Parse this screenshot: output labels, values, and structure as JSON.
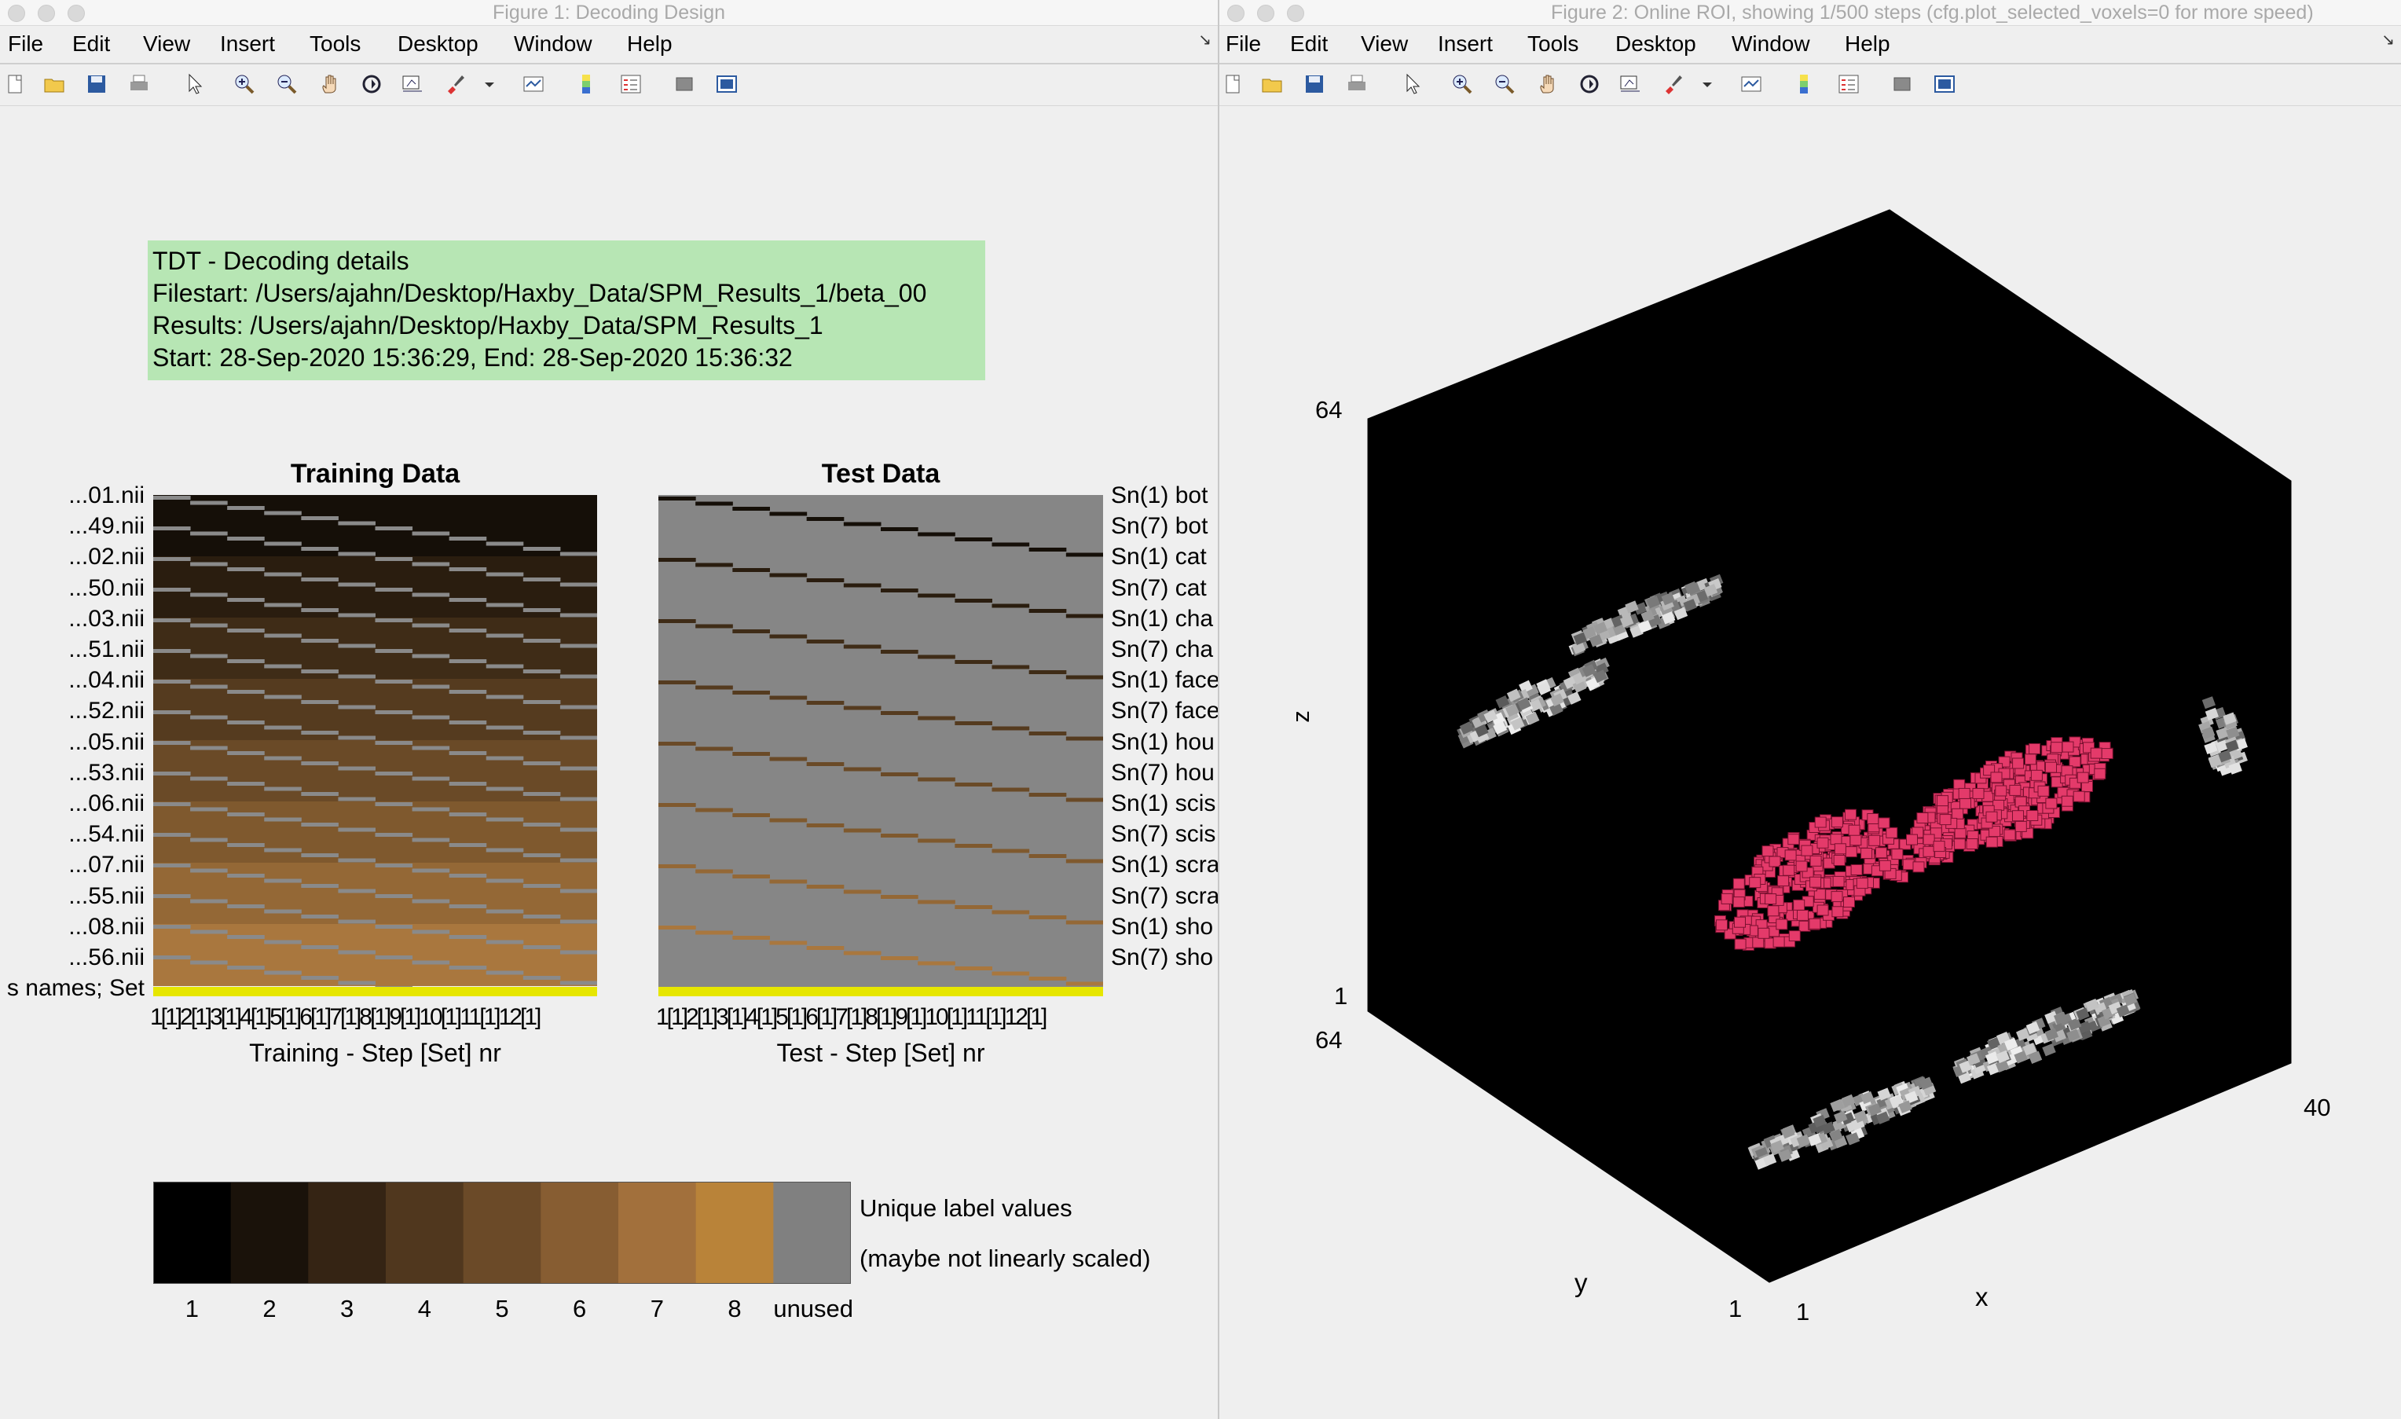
{
  "windows": {
    "fig1": {
      "title": "Figure 1: Decoding Design"
    },
    "fig2": {
      "title": "Figure 2: Online ROI, showing 1/500 steps (cfg.plot_selected_voxels=0 for more speed)"
    }
  },
  "menu": [
    "File",
    "Edit",
    "View",
    "Insert",
    "Tools",
    "Desktop",
    "Window",
    "Help"
  ],
  "toolbar_icons": [
    "new-figure-icon",
    "open-file-icon",
    "save-icon",
    "print-icon",
    "pointer-icon",
    "zoom-in-icon",
    "zoom-out-icon",
    "pan-hand-icon",
    "rotate-3d-icon",
    "data-cursor-icon",
    "brush-icon",
    "dropdown-arrow-icon",
    "link-plot-icon",
    "colorbar-icon",
    "legend-icon",
    "hide-plot-tools-icon",
    "show-plot-tools-icon"
  ],
  "info_box": {
    "line1": "TDT - Decoding details",
    "line2": "Filestart: /Users/ajahn/Desktop/Haxby_Data/SPM_Results_1/beta_00",
    "line3": "Results: /Users/ajahn/Desktop/Haxby_Data/SPM_Results_1",
    "line4": "Start: 28-Sep-2020 15:36:29, End: 28-Sep-2020 15:36:32"
  },
  "training": {
    "title": "Training Data",
    "xlabel": "Training - Step [Set] nr",
    "ticks": "1[1]2[1]3[1]4[1]5[1]6[1]7[1]8[1]9[1]10[1]11[1]12[1]"
  },
  "test": {
    "title": "Test Data",
    "xlabel": "Test - Step [Set] nr",
    "ticks": "1[1]2[1]3[1]4[1]5[1]6[1]7[1]8[1]9[1]10[1]11[1]12[1]"
  },
  "row_labels_left": [
    "...01.nii",
    "...49.nii",
    "...02.nii",
    "...50.nii",
    "...03.nii",
    "...51.nii",
    "...04.nii",
    "...52.nii",
    "...05.nii",
    "...53.nii",
    "...06.nii",
    "...54.nii",
    "...07.nii",
    "...55.nii",
    "...08.nii",
    "...56.nii",
    "s names; Set"
  ],
  "row_labels_right": [
    "Sn(1) bot",
    "Sn(7) bot",
    "Sn(1) cat",
    "Sn(7) cat",
    "Sn(1) cha",
    "Sn(7) cha",
    "Sn(1) face",
    "Sn(7) face",
    "Sn(1) hou",
    "Sn(7) hou",
    "Sn(1) scis",
    "Sn(7) scis",
    "Sn(1) scra",
    "Sn(7) scra",
    "Sn(1) sho",
    "Sn(7) sho"
  ],
  "colorbar": {
    "labels": [
      "1",
      "2",
      "3",
      "4",
      "5",
      "6",
      "7",
      "8",
      "unused"
    ],
    "colors": [
      "#000000",
      "#1a120a",
      "#352414",
      "#50371e",
      "#6b4a28",
      "#875d32",
      "#a2703c",
      "#b98339",
      "#808080"
    ],
    "caption1": "Unique label values",
    "caption2": "(maybe not linearly scaled)"
  },
  "design_colors": {
    "levels": [
      "#000000",
      "#150f08",
      "#2a1d0f",
      "#3f2c17",
      "#553b1f",
      "#6a4a27",
      "#7f592e",
      "#946836",
      "#a9773e",
      "#b98339"
    ],
    "selector_bar": "#e6e600",
    "test_bg": "#868686",
    "train_line": "#8a8a8a"
  },
  "roi3d": {
    "axis_z_top": "64",
    "axis_z_bottom": "1",
    "axis_y_top": "64",
    "axis_y_bottom": "1",
    "axis_x_left": "1",
    "axis_x_right": "40",
    "label_z": "z",
    "label_y": "y",
    "label_x": "x",
    "roi_color": "#e43a6a"
  }
}
